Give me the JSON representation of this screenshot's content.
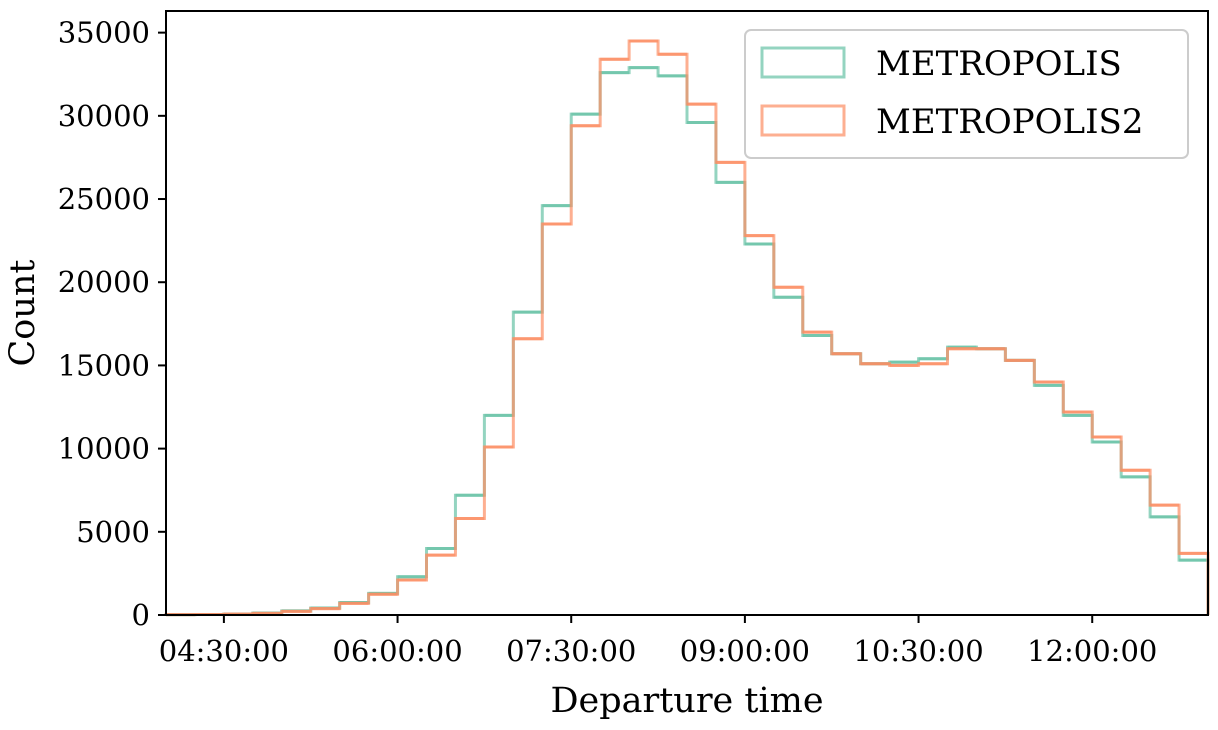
{
  "chart_data": {
    "type": "histogram",
    "xlabel": "Departure time",
    "ylabel": "Count",
    "x_tick_labels": [
      "04:30:00",
      "06:00:00",
      "07:30:00",
      "09:00:00",
      "10:30:00",
      "12:00:00"
    ],
    "x_tick_values_hours": [
      4.5,
      6.0,
      7.5,
      9.0,
      10.5,
      12.0
    ],
    "xlim_hours": [
      4.0,
      13.0
    ],
    "ylim": [
      0,
      36300
    ],
    "y_ticks": [
      0,
      5000,
      10000,
      15000,
      20000,
      25000,
      30000,
      35000
    ],
    "bin_width_hours": 0.25,
    "bin_edges_hours": [
      4.0,
      4.25,
      4.5,
      4.75,
      5.0,
      5.25,
      5.5,
      5.75,
      6.0,
      6.25,
      6.5,
      6.75,
      7.0,
      7.25,
      7.5,
      7.75,
      8.0,
      8.25,
      8.5,
      8.75,
      9.0,
      9.25,
      9.5,
      9.75,
      10.0,
      10.25,
      10.5,
      10.75,
      11.0,
      11.25,
      11.5,
      11.75,
      12.0,
      12.25,
      12.5,
      12.75,
      13.0
    ],
    "legend_position": "top-right",
    "grid": false,
    "series": [
      {
        "name": "METROPOLIS",
        "color": "#66c2a5",
        "values": [
          20,
          30,
          50,
          120,
          250,
          420,
          750,
          1300,
          2300,
          4000,
          7200,
          12000,
          18200,
          24600,
          30100,
          32600,
          32900,
          32400,
          29600,
          26000,
          22300,
          19100,
          16800,
          15700,
          15100,
          15200,
          15400,
          16100,
          16000,
          15300,
          13800,
          12000,
          10400,
          8300,
          5900,
          3300
        ]
      },
      {
        "name": "METROPOLIS2",
        "color": "#fc8d62",
        "values": [
          20,
          30,
          50,
          100,
          220,
          380,
          700,
          1250,
          2100,
          3600,
          5800,
          10100,
          16600,
          23500,
          29400,
          33400,
          34500,
          33700,
          30700,
          27200,
          22800,
          19700,
          17000,
          15700,
          15100,
          15000,
          15100,
          16000,
          16000,
          15300,
          14000,
          12200,
          10700,
          8700,
          6600,
          3700
        ]
      }
    ]
  }
}
